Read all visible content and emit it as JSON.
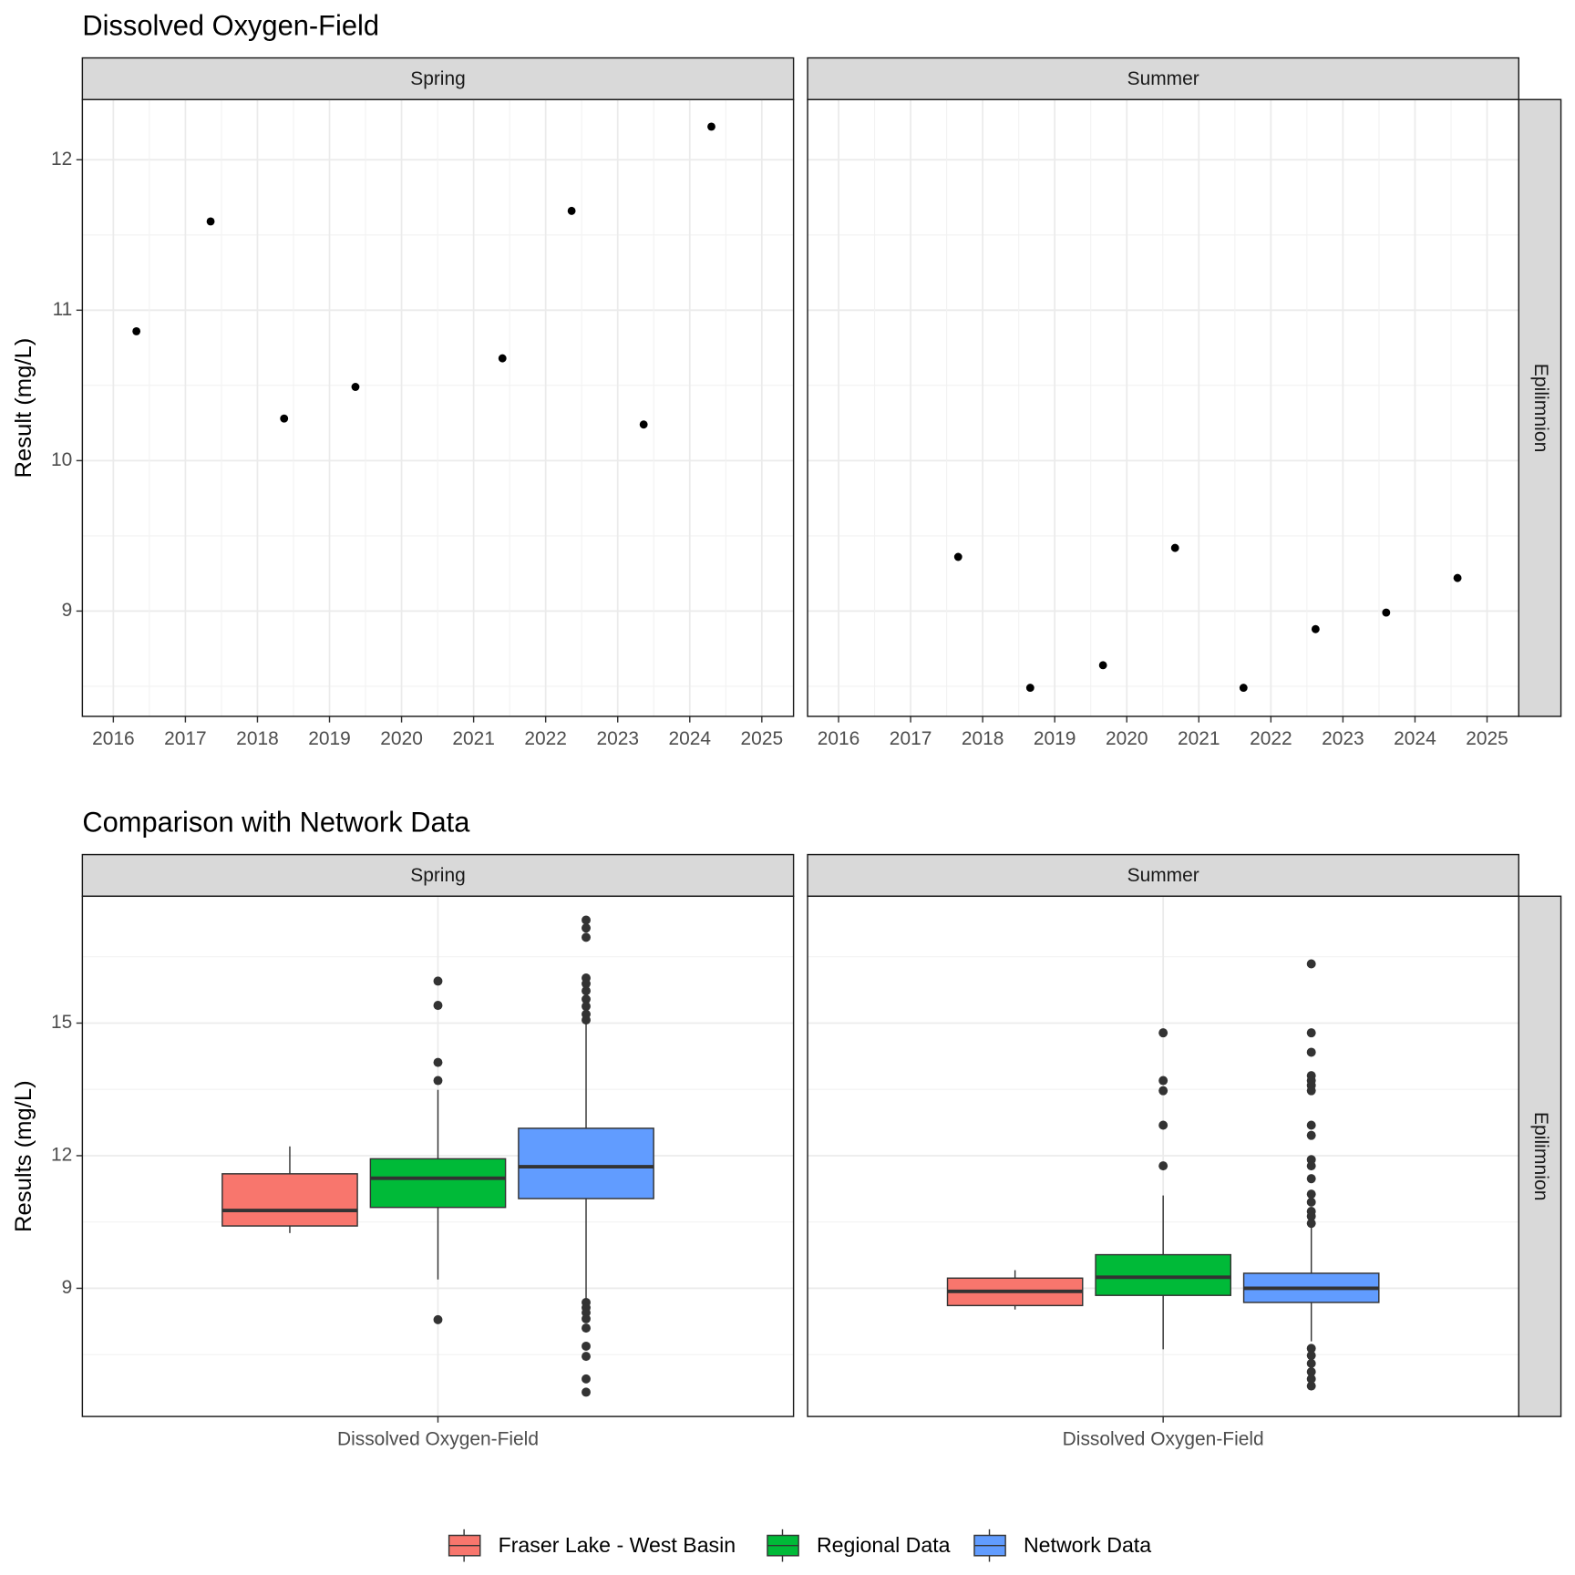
{
  "chart_data": [
    {
      "type": "scatter",
      "title": "Dissolved Oxygen-Field",
      "y_label": "Result (mg/L)",
      "row_label": "Epilimnion",
      "xlim": [
        2015.57,
        2025.44
      ],
      "xticks": [
        2016,
        2017,
        2018,
        2019,
        2020,
        2021,
        2022,
        2023,
        2024,
        2025
      ],
      "ylim": [
        8.3,
        12.4
      ],
      "yticks": [
        9,
        10,
        11,
        12
      ],
      "grid": true,
      "color": "#000000",
      "facets": [
        {
          "name": "Spring",
          "x": [
            2016.32,
            2017.35,
            2018.37,
            2019.36,
            2021.4,
            2022.36,
            2023.36,
            2024.3
          ],
          "y": [
            10.86,
            11.59,
            10.28,
            10.49,
            10.68,
            11.66,
            10.24,
            12.22
          ]
        },
        {
          "name": "Summer",
          "x": [
            2017.66,
            2018.66,
            2019.67,
            2020.67,
            2021.62,
            2022.62,
            2023.6,
            2024.59
          ],
          "y": [
            9.36,
            8.49,
            8.64,
            9.42,
            8.49,
            8.88,
            8.99,
            9.22
          ]
        }
      ]
    },
    {
      "type": "boxplot",
      "title": "Comparison with Network Data",
      "y_label": "Results (mg/L)",
      "row_label": "Epilimnion",
      "category": "Dissolved Oxygen-Field",
      "ylim": [
        6.1,
        17.87
      ],
      "yticks": [
        9,
        12,
        15
      ],
      "grid": true,
      "series": [
        {
          "name": "Fraser Lake - West Basin",
          "color": "#f8766d"
        },
        {
          "name": "Regional Data",
          "color": "#00ba38"
        },
        {
          "name": "Network Data",
          "color": "#619cff"
        }
      ],
      "facets": [
        {
          "name": "Spring",
          "boxes": [
            {
              "low": 10.25,
              "q1": 10.41,
              "median": 10.76,
              "q3": 11.59,
              "high": 12.21,
              "outliers": []
            },
            {
              "low": 9.2,
              "q1": 10.83,
              "median": 11.49,
              "q3": 11.93,
              "high": 13.49,
              "outliers": [
                15.95,
                15.4,
                14.11,
                13.7,
                8.29
              ]
            },
            {
              "low": 8.72,
              "q1": 11.03,
              "median": 11.75,
              "q3": 12.62,
              "high": 14.98,
              "outliers": [
                17.33,
                17.15,
                16.94,
                16.02,
                15.89,
                15.73,
                15.54,
                15.38,
                15.2,
                15.07,
                8.68,
                8.56,
                8.45,
                8.31,
                8.1,
                7.69,
                7.46,
                6.95,
                6.65
              ]
            }
          ]
        },
        {
          "name": "Summer",
          "boxes": [
            {
              "low": 8.52,
              "q1": 8.61,
              "median": 8.93,
              "q3": 9.23,
              "high": 9.41,
              "outliers": []
            },
            {
              "low": 7.62,
              "q1": 8.84,
              "median": 9.25,
              "q3": 9.76,
              "high": 11.1,
              "outliers": [
                14.78,
                13.7,
                13.47,
                12.69,
                11.77
              ]
            },
            {
              "low": 7.8,
              "q1": 8.68,
              "median": 9.0,
              "q3": 9.34,
              "high": 10.39,
              "outliers": [
                16.34,
                14.78,
                14.34,
                13.81,
                13.7,
                13.59,
                13.47,
                12.69,
                12.46,
                11.91,
                11.77,
                11.48,
                11.13,
                10.95,
                10.74,
                10.63,
                10.47,
                7.64,
                7.48,
                7.3,
                7.11,
                6.95,
                6.79
              ]
            }
          ]
        }
      ]
    }
  ]
}
